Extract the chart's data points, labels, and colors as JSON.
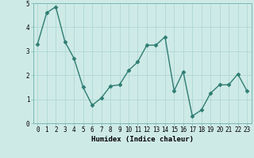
{
  "x": [
    0,
    1,
    2,
    3,
    4,
    5,
    6,
    7,
    8,
    9,
    10,
    11,
    12,
    13,
    14,
    15,
    16,
    17,
    18,
    19,
    20,
    21,
    22,
    23
  ],
  "y": [
    3.3,
    4.6,
    4.85,
    3.4,
    2.7,
    1.5,
    0.75,
    1.05,
    1.55,
    1.6,
    2.2,
    2.55,
    3.25,
    3.25,
    3.6,
    1.35,
    2.15,
    0.3,
    0.55,
    1.25,
    1.6,
    1.6,
    2.05,
    1.35
  ],
  "line_color": "#2e7d72",
  "marker": "D",
  "markersize": 2.5,
  "linewidth": 1.0,
  "bg_color": "#ceeae7",
  "grid_color": "#b0d8d4",
  "xlabel": "Humidex (Indice chaleur)",
  "ylim": [
    0,
    5
  ],
  "xlim": [
    -0.5,
    23.5
  ],
  "yticks": [
    0,
    1,
    2,
    3,
    4,
    5
  ],
  "xticks": [
    0,
    1,
    2,
    3,
    4,
    5,
    6,
    7,
    8,
    9,
    10,
    11,
    12,
    13,
    14,
    15,
    16,
    17,
    18,
    19,
    20,
    21,
    22,
    23
  ],
  "xlabel_fontsize": 6.5,
  "tick_fontsize": 5.5
}
